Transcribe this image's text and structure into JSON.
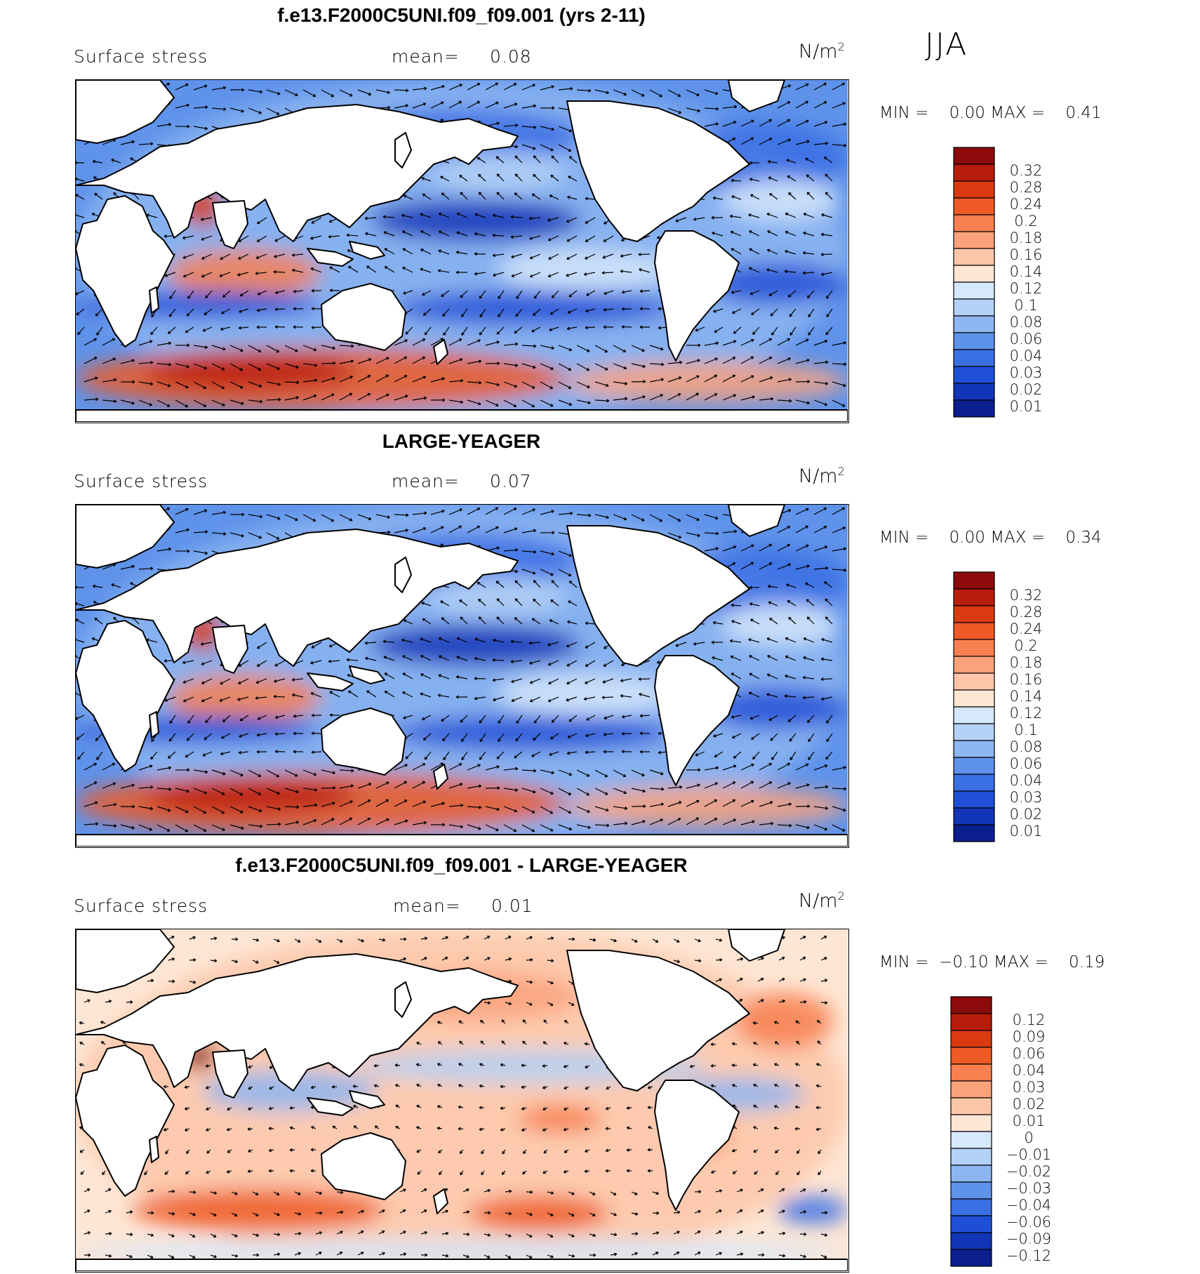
{
  "season": "JJA",
  "units_base": "N/m",
  "units_exp": "2",
  "panels": [
    {
      "title": "f.e13.F2000C5UNI.f09_f09.001 (yrs 2-11)",
      "variable": "Surface stress",
      "mean_label": "mean=",
      "mean_value": "0.08",
      "min_label": "MIN =",
      "min_value": "0.00",
      "max_label": "MAX =",
      "max_value": "0.41",
      "colorbar_levels": [
        "0.32",
        "0.28",
        "0.24",
        "0.2",
        "0.18",
        "0.16",
        "0.14",
        "0.12",
        "0.1",
        "0.08",
        "0.06",
        "0.04",
        "0.03",
        "0.02",
        "0.01"
      ],
      "colorbar_colors": [
        "#8c0a0a",
        "#b81c0a",
        "#d93a10",
        "#ee5a25",
        "#f88050",
        "#fba27c",
        "#fdc6a8",
        "#fee6d4",
        "#d6e8fb",
        "#b4d1f7",
        "#8db6f1",
        "#5f93ea",
        "#3a6fe4",
        "#1f4fd6",
        "#1235b8",
        "#0a1e8e"
      ],
      "chart_data": {
        "type": "heatmap",
        "field": "Surface stress",
        "units": "N/m^2",
        "mean": 0.08,
        "min": 0.0,
        "max": 0.41,
        "contour_levels": [
          0.01,
          0.02,
          0.03,
          0.04,
          0.06,
          0.08,
          0.1,
          0.12,
          0.14,
          0.16,
          0.18,
          0.2,
          0.24,
          0.28,
          0.32
        ]
      }
    },
    {
      "title": "LARGE-YEAGER",
      "variable": "Surface stress",
      "mean_label": "mean=",
      "mean_value": "0.07",
      "min_label": "MIN =",
      "min_value": "0.00",
      "max_label": "MAX =",
      "max_value": "0.34",
      "colorbar_levels": [
        "0.32",
        "0.28",
        "0.24",
        "0.2",
        "0.18",
        "0.16",
        "0.14",
        "0.12",
        "0.1",
        "0.08",
        "0.06",
        "0.04",
        "0.03",
        "0.02",
        "0.01"
      ],
      "colorbar_colors": [
        "#8c0a0a",
        "#b81c0a",
        "#d93a10",
        "#ee5a25",
        "#f88050",
        "#fba27c",
        "#fdc6a8",
        "#fee6d4",
        "#d6e8fb",
        "#b4d1f7",
        "#8db6f1",
        "#5f93ea",
        "#3a6fe4",
        "#1f4fd6",
        "#1235b8",
        "#0a1e8e"
      ],
      "chart_data": {
        "type": "heatmap",
        "field": "Surface stress",
        "units": "N/m^2",
        "mean": 0.07,
        "min": 0.0,
        "max": 0.34,
        "contour_levels": [
          0.01,
          0.02,
          0.03,
          0.04,
          0.06,
          0.08,
          0.1,
          0.12,
          0.14,
          0.16,
          0.18,
          0.2,
          0.24,
          0.28,
          0.32
        ]
      }
    },
    {
      "title": "f.e13.F2000C5UNI.f09_f09.001 - LARGE-YEAGER",
      "variable": "Surface stress",
      "mean_label": "mean=",
      "mean_value": "0.01",
      "min_label": "MIN =",
      "min_value": "−0.10",
      "max_label": "MAX =",
      "max_value": "0.19",
      "colorbar_levels": [
        "0.12",
        "0.09",
        "0.06",
        "0.04",
        "0.03",
        "0.02",
        "0.01",
        "0",
        "−0.01",
        "−0.02",
        "−0.03",
        "−0.04",
        "−0.06",
        "−0.09",
        "−0.12"
      ],
      "colorbar_colors": [
        "#8c0a0a",
        "#b81c0a",
        "#d93a10",
        "#ee5a25",
        "#f88050",
        "#fba27c",
        "#fdc6a8",
        "#fee6d4",
        "#d6e8fb",
        "#b4d1f7",
        "#8db6f1",
        "#5f93ea",
        "#3a6fe4",
        "#1f4fd6",
        "#1235b8",
        "#0a1e8e"
      ],
      "chart_data": {
        "type": "heatmap",
        "field": "Surface stress",
        "units": "N/m^2",
        "mean": 0.01,
        "min": -0.1,
        "max": 0.19,
        "contour_levels": [
          -0.12,
          -0.09,
          -0.06,
          -0.04,
          -0.03,
          -0.02,
          -0.01,
          0,
          0.01,
          0.02,
          0.03,
          0.04,
          0.06,
          0.09,
          0.12
        ]
      }
    }
  ]
}
